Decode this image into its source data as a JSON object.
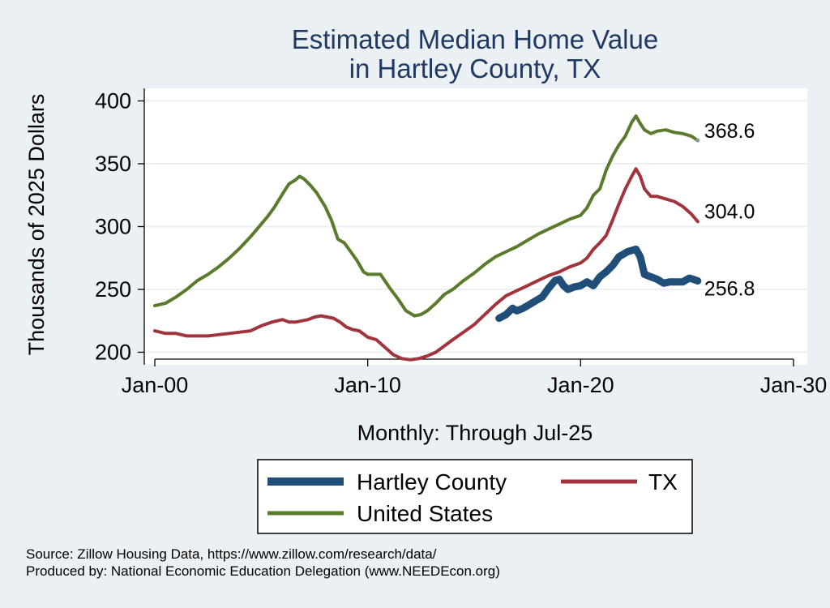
{
  "chart_data": {
    "type": "line",
    "title": [
      "Estimated Median Home Value",
      "in Hartley County, TX"
    ],
    "ylabel": "Thousands of 2025 Dollars",
    "xlabel": "Monthly: Through Jul-25",
    "ylim": [
      190,
      410
    ],
    "xlim": [
      2000.0,
      2030.0
    ],
    "y_ticks": [
      200,
      250,
      300,
      350,
      400
    ],
    "x_ticks": [
      {
        "value": 2000,
        "label": "Jan-00"
      },
      {
        "value": 2010,
        "label": "Jan-10"
      },
      {
        "value": 2020,
        "label": "Jan-20"
      },
      {
        "value": 2030,
        "label": "Jan-30"
      }
    ],
    "grid": "horizontal",
    "legend_placement": "bottom",
    "series": [
      {
        "name": "Hartley County",
        "color": "#1f4e79",
        "end_label": "256.8",
        "points": [
          [
            2016.17,
            227
          ],
          [
            2016.5,
            230
          ],
          [
            2016.8,
            235
          ],
          [
            2017.0,
            233
          ],
          [
            2017.3,
            235
          ],
          [
            2017.6,
            238
          ],
          [
            2017.9,
            241
          ],
          [
            2018.2,
            244
          ],
          [
            2018.5,
            251
          ],
          [
            2018.8,
            257
          ],
          [
            2019.0,
            258
          ],
          [
            2019.2,
            253
          ],
          [
            2019.4,
            250
          ],
          [
            2019.7,
            252
          ],
          [
            2020.0,
            253
          ],
          [
            2020.3,
            256
          ],
          [
            2020.6,
            253
          ],
          [
            2020.9,
            260
          ],
          [
            2021.2,
            264
          ],
          [
            2021.5,
            269
          ],
          [
            2021.8,
            276
          ],
          [
            2022.0,
            278
          ],
          [
            2022.2,
            280
          ],
          [
            2022.4,
            281
          ],
          [
            2022.6,
            282
          ],
          [
            2022.8,
            276
          ],
          [
            2023.0,
            262
          ],
          [
            2023.3,
            260
          ],
          [
            2023.6,
            258
          ],
          [
            2023.9,
            255
          ],
          [
            2024.2,
            256
          ],
          [
            2024.5,
            256
          ],
          [
            2024.8,
            256
          ],
          [
            2025.1,
            259
          ],
          [
            2025.3,
            258
          ],
          [
            2025.5,
            256.8
          ]
        ]
      },
      {
        "name": "TX",
        "color": "#a1343c",
        "end_label": "304.0",
        "points": [
          [
            2000.0,
            217
          ],
          [
            2000.5,
            215
          ],
          [
            2001.0,
            215
          ],
          [
            2001.5,
            213
          ],
          [
            2002.0,
            213
          ],
          [
            2002.5,
            213
          ],
          [
            2003.0,
            214
          ],
          [
            2003.5,
            215
          ],
          [
            2004.0,
            216
          ],
          [
            2004.5,
            217
          ],
          [
            2005.0,
            221
          ],
          [
            2005.5,
            224
          ],
          [
            2006.0,
            226
          ],
          [
            2006.3,
            224
          ],
          [
            2006.6,
            224
          ],
          [
            2006.9,
            225
          ],
          [
            2007.2,
            226
          ],
          [
            2007.5,
            228
          ],
          [
            2007.8,
            229
          ],
          [
            2008.1,
            228
          ],
          [
            2008.4,
            227
          ],
          [
            2008.7,
            224
          ],
          [
            2009.0,
            220
          ],
          [
            2009.3,
            218
          ],
          [
            2009.6,
            217
          ],
          [
            2010.0,
            212
          ],
          [
            2010.4,
            210
          ],
          [
            2010.8,
            204
          ],
          [
            2011.2,
            198
          ],
          [
            2011.6,
            195
          ],
          [
            2012.0,
            194
          ],
          [
            2012.4,
            195
          ],
          [
            2012.8,
            197
          ],
          [
            2013.2,
            200
          ],
          [
            2013.6,
            205
          ],
          [
            2014.0,
            210
          ],
          [
            2014.5,
            216
          ],
          [
            2015.0,
            222
          ],
          [
            2015.5,
            230
          ],
          [
            2016.0,
            238
          ],
          [
            2016.5,
            245
          ],
          [
            2017.0,
            249
          ],
          [
            2017.5,
            253
          ],
          [
            2018.0,
            257
          ],
          [
            2018.5,
            261
          ],
          [
            2019.0,
            264
          ],
          [
            2019.5,
            268
          ],
          [
            2020.0,
            271
          ],
          [
            2020.3,
            275
          ],
          [
            2020.6,
            282
          ],
          [
            2020.9,
            287
          ],
          [
            2021.2,
            293
          ],
          [
            2021.5,
            305
          ],
          [
            2021.8,
            318
          ],
          [
            2022.1,
            330
          ],
          [
            2022.4,
            340
          ],
          [
            2022.6,
            346
          ],
          [
            2022.8,
            340
          ],
          [
            2023.0,
            330
          ],
          [
            2023.3,
            324
          ],
          [
            2023.6,
            324
          ],
          [
            2024.0,
            322
          ],
          [
            2024.4,
            320
          ],
          [
            2024.8,
            316
          ],
          [
            2025.2,
            310
          ],
          [
            2025.5,
            304.0
          ]
        ]
      },
      {
        "name": "United States",
        "color": "#5a7a2c",
        "end_label": "368.6",
        "points": [
          [
            2000.0,
            237
          ],
          [
            2000.5,
            239
          ],
          [
            2001.0,
            244
          ],
          [
            2001.5,
            250
          ],
          [
            2002.0,
            257
          ],
          [
            2002.5,
            262
          ],
          [
            2003.0,
            268
          ],
          [
            2003.5,
            275
          ],
          [
            2004.0,
            283
          ],
          [
            2004.5,
            292
          ],
          [
            2005.0,
            302
          ],
          [
            2005.3,
            308
          ],
          [
            2005.6,
            315
          ],
          [
            2006.0,
            326
          ],
          [
            2006.3,
            334
          ],
          [
            2006.6,
            337
          ],
          [
            2006.8,
            340
          ],
          [
            2007.0,
            338
          ],
          [
            2007.3,
            333
          ],
          [
            2007.6,
            327
          ],
          [
            2008.0,
            316
          ],
          [
            2008.3,
            305
          ],
          [
            2008.6,
            290
          ],
          [
            2008.9,
            287
          ],
          [
            2009.2,
            280
          ],
          [
            2009.5,
            273
          ],
          [
            2009.8,
            264
          ],
          [
            2010.0,
            262
          ],
          [
            2010.3,
            262
          ],
          [
            2010.6,
            262
          ],
          [
            2011.0,
            252
          ],
          [
            2011.4,
            243
          ],
          [
            2011.8,
            233
          ],
          [
            2012.2,
            229
          ],
          [
            2012.5,
            230
          ],
          [
            2012.8,
            233
          ],
          [
            2013.2,
            239
          ],
          [
            2013.6,
            246
          ],
          [
            2014.0,
            250
          ],
          [
            2014.5,
            257
          ],
          [
            2015.0,
            263
          ],
          [
            2015.5,
            270
          ],
          [
            2016.0,
            276
          ],
          [
            2016.5,
            280
          ],
          [
            2017.0,
            284
          ],
          [
            2017.5,
            289
          ],
          [
            2018.0,
            294
          ],
          [
            2018.5,
            298
          ],
          [
            2019.0,
            302
          ],
          [
            2019.5,
            306
          ],
          [
            2020.0,
            309
          ],
          [
            2020.3,
            315
          ],
          [
            2020.6,
            325
          ],
          [
            2020.9,
            330
          ],
          [
            2021.2,
            345
          ],
          [
            2021.5,
            356
          ],
          [
            2021.8,
            365
          ],
          [
            2022.1,
            372
          ],
          [
            2022.4,
            383
          ],
          [
            2022.6,
            388
          ],
          [
            2022.8,
            382
          ],
          [
            2023.0,
            377
          ],
          [
            2023.3,
            374
          ],
          [
            2023.6,
            376
          ],
          [
            2024.0,
            377
          ],
          [
            2024.4,
            375
          ],
          [
            2024.8,
            374
          ],
          [
            2025.2,
            372
          ],
          [
            2025.5,
            368.6
          ]
        ]
      }
    ],
    "legend": {
      "entries": [
        "Hartley County",
        "TX",
        "United States"
      ]
    }
  },
  "footer": {
    "source": "Source: Zillow Housing Data, https://www.zillow.com/research/data/",
    "produced": "Produced by: National Economic Education Delegation (www.NEEDEcon.org)"
  }
}
